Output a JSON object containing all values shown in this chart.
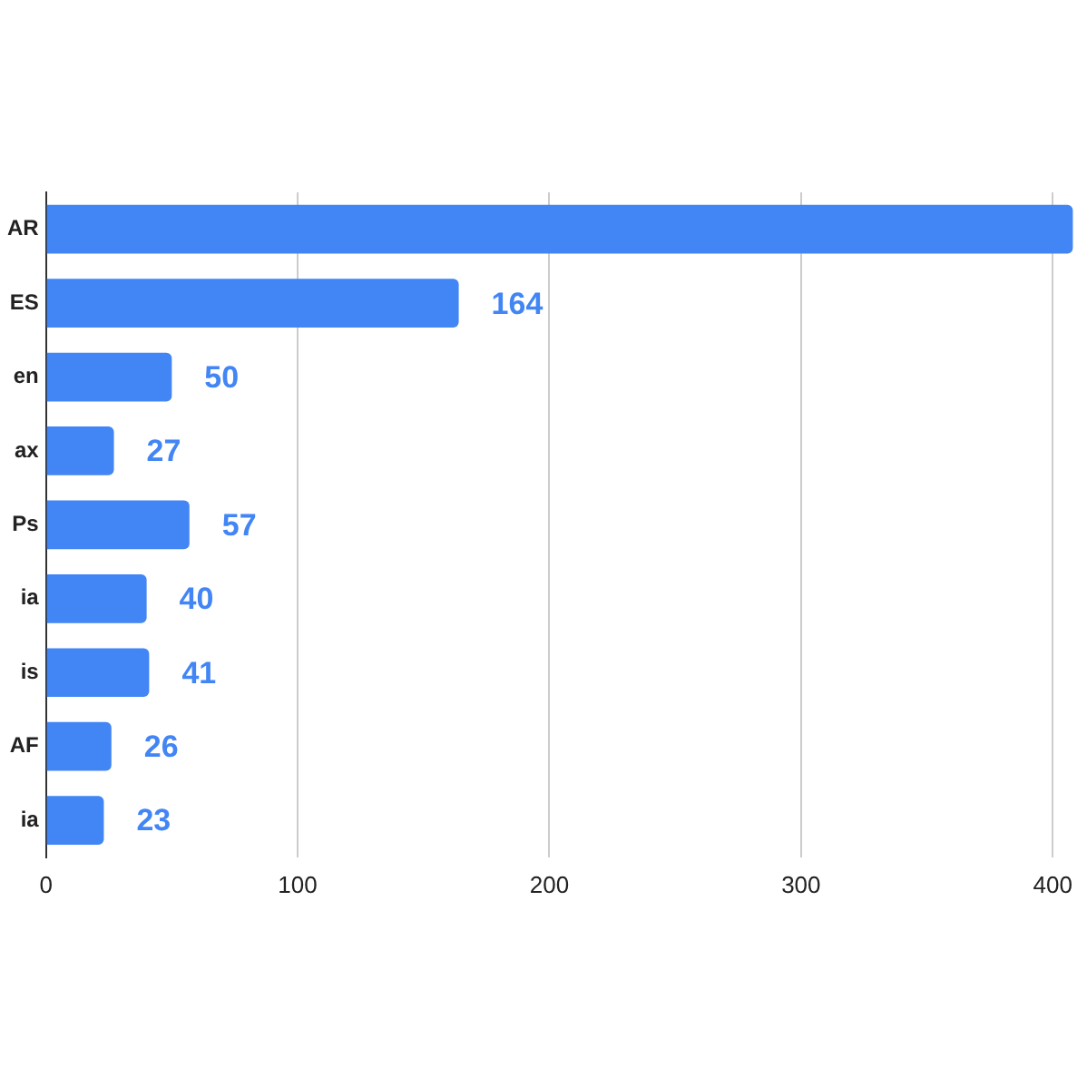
{
  "chart_data": {
    "type": "bar",
    "orientation": "horizontal",
    "categories": [
      "AR",
      "ES",
      "en",
      "ax",
      "Ps",
      "ia",
      "is",
      "AF",
      "ia"
    ],
    "values": [
      408,
      164,
      50,
      27,
      57,
      40,
      41,
      26,
      23
    ],
    "value_labels": [
      null,
      "164",
      "50",
      "27",
      "57",
      "40",
      "41",
      "26",
      "23"
    ],
    "color": "#4285f4",
    "xlim": [
      0,
      410
    ],
    "xticks": [
      0,
      100,
      200,
      300,
      400
    ],
    "grid": "x",
    "legend": false
  }
}
